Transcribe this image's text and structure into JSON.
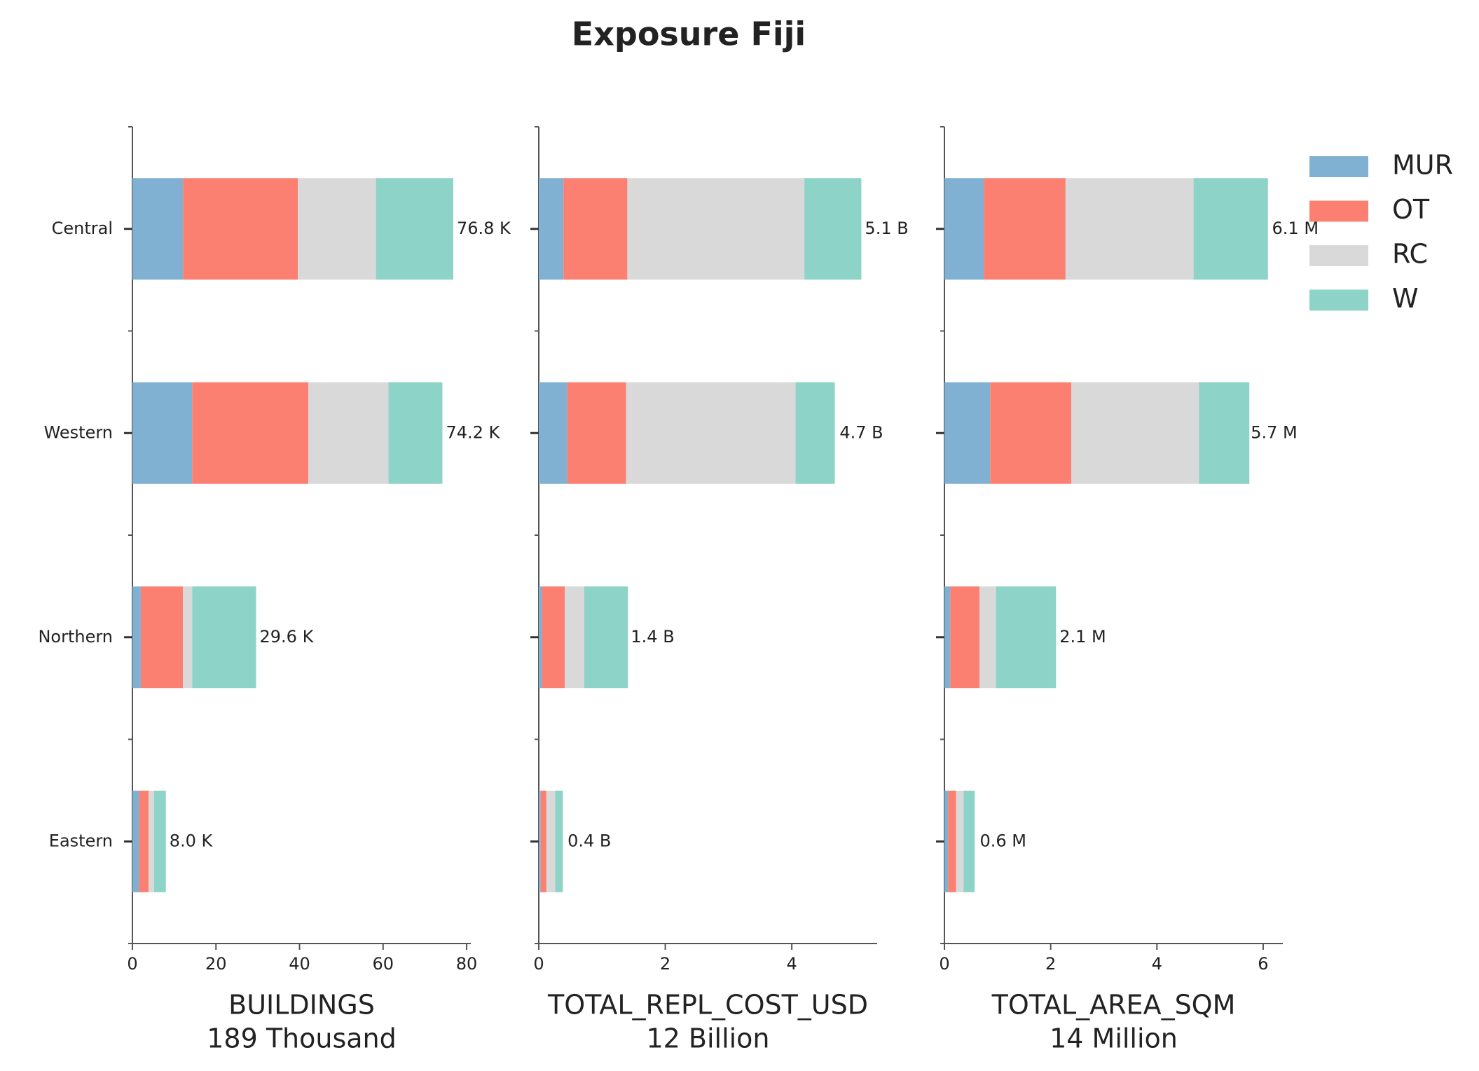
{
  "chart_data": {
    "type": "bar",
    "title": "Exposure Fiji",
    "categories": [
      "Central",
      "Western",
      "Northern",
      "Eastern"
    ],
    "series": [
      {
        "name": "MUR",
        "color": "#80b1d3"
      },
      {
        "name": "OT",
        "color": "#fb8072"
      },
      {
        "name": "RC",
        "color": "#d9d9d9"
      },
      {
        "name": "W",
        "color": "#8dd3c7"
      }
    ],
    "panels": [
      {
        "xlabel": "BUILDINGS",
        "xsublabel": "189 Thousand",
        "xlim": [
          0,
          81
        ],
        "xticks": [
          0,
          20,
          40,
          60,
          80
        ],
        "values": [
          [
            12.1,
            14.3,
            2.0,
            1.6
          ],
          [
            27.5,
            27.8,
            10.1,
            2.3
          ],
          [
            18.7,
            19.2,
            2.2,
            1.3
          ],
          [
            18.5,
            12.9,
            15.3,
            2.8
          ]
        ],
        "totals": [
          76.8,
          74.2,
          29.6,
          8.0
        ],
        "total_labels": [
          "76.8 K",
          "74.2 K",
          "29.6 K",
          "8.0 K"
        ]
      },
      {
        "xlabel": "TOTAL_REPL_COST_USD",
        "xsublabel": "12 Billion",
        "xlim": [
          0,
          5.35
        ],
        "xticks": [
          0,
          2,
          4
        ],
        "values": [
          [
            0.39,
            0.45,
            0.05,
            0.03
          ],
          [
            1.01,
            0.93,
            0.36,
            0.09
          ],
          [
            2.8,
            2.68,
            0.31,
            0.14
          ],
          [
            0.9,
            0.62,
            0.69,
            0.12
          ]
        ],
        "totals": [
          5.1,
          4.7,
          1.4,
          0.4
        ],
        "total_labels": [
          "5.1 B",
          "4.7 B",
          "1.4 B",
          "0.4 B"
        ]
      },
      {
        "xlabel": "TOTAL_AREA_SQM",
        "xsublabel": "14 Million",
        "xlim": [
          0,
          6.37
        ],
        "xticks": [
          0,
          2,
          4,
          6
        ],
        "values": [
          [
            0.74,
            0.86,
            0.11,
            0.07
          ],
          [
            1.54,
            1.53,
            0.55,
            0.15
          ],
          [
            2.41,
            2.4,
            0.31,
            0.14
          ],
          [
            1.4,
            0.95,
            1.13,
            0.21
          ]
        ],
        "totals": [
          6.1,
          5.7,
          2.1,
          0.6
        ],
        "total_labels": [
          "6.1 M",
          "5.7 M",
          "2.1 M",
          "0.6 M"
        ]
      }
    ]
  }
}
